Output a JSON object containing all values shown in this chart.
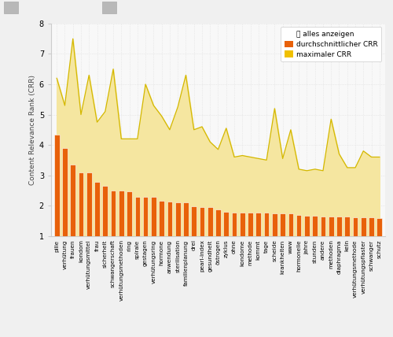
{
  "categories": [
    "pille",
    "verhütung",
    "frauen",
    "kondom",
    "verhütungsmittel",
    "frau",
    "sicherheit",
    "schwangerschaft",
    "verhütungsmethoden",
    "ring",
    "spirale",
    "gestagen",
    "verhütungsring",
    "hormone",
    "anwendung",
    "sterilisation",
    "familienplanung",
    "drei",
    "pearl-index",
    "gesundheit",
    "östrogen",
    "zyklus",
    "ohne",
    "kondome",
    "methode",
    "kommt",
    "tage",
    "scheide",
    "krankheiten",
    "www",
    "hormonelle",
    "jahre",
    "stunden",
    "andere",
    "methoden",
    "diaphragma",
    "kein",
    "verhütungsmethode",
    "verhütungspflaster",
    "schwanger",
    "schutz"
  ],
  "avg_crr": [
    4.35,
    3.9,
    3.35,
    3.1,
    3.08,
    2.78,
    2.65,
    2.5,
    2.5,
    2.48,
    2.3,
    2.3,
    2.28,
    2.15,
    2.12,
    2.1,
    2.1,
    1.98,
    1.95,
    1.95,
    1.88,
    1.8,
    1.78,
    1.78,
    1.77,
    1.76,
    1.76,
    1.75,
    1.74,
    1.74,
    1.68,
    1.67,
    1.66,
    1.65,
    1.65,
    1.64,
    1.63,
    1.62,
    1.61,
    1.6,
    1.58
  ],
  "max_crr": [
    6.2,
    5.3,
    7.5,
    5.0,
    6.3,
    4.75,
    5.1,
    6.5,
    4.2,
    4.2,
    4.2,
    6.0,
    5.3,
    4.95,
    4.5,
    5.25,
    6.3,
    4.5,
    4.6,
    4.1,
    3.85,
    4.55,
    3.6,
    3.65,
    3.6,
    3.55,
    3.5,
    5.2,
    3.55,
    4.5,
    3.2,
    3.15,
    3.2,
    3.15,
    4.85,
    3.7,
    3.25,
    3.25,
    3.8,
    3.6,
    3.6
  ],
  "bar_color": "#e8610a",
  "area_fill_color": "#f5e6a0",
  "area_line_color": "#d4b800",
  "legend_yellow_color": "#f0c000",
  "ylabel": "Content Relevance Rank (CRR)",
  "ylim": [
    1,
    8
  ],
  "yticks": [
    1,
    2,
    3,
    4,
    5,
    6,
    7,
    8
  ],
  "bg_color": "#f0f0f0",
  "plot_bg": "#f8f8f8",
  "scrollbar_bg": "#d8d8d8",
  "scrollbar_thumb": "#b8b8b8",
  "legend_items": [
    "alles anzeigen",
    "durchschnittlicher CRR",
    "maximaler CRR"
  ],
  "dot_grid_color": "#dddddd"
}
